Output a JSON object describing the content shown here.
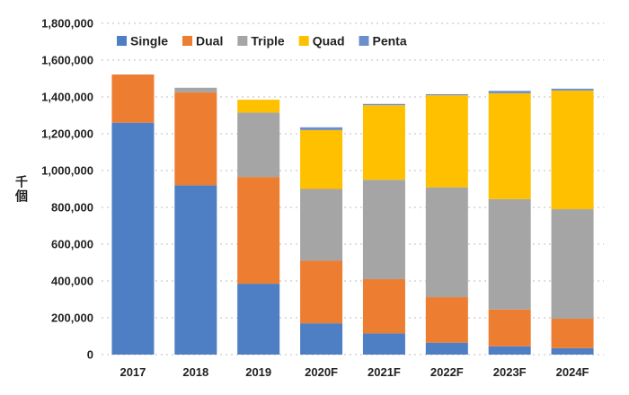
{
  "chart_data": {
    "type": "bar",
    "stacked": true,
    "categories": [
      "2017",
      "2018",
      "2019",
      "2020F",
      "2021F",
      "2022F",
      "2023F",
      "2024F"
    ],
    "series": [
      {
        "name": "Single",
        "color": "#4E7FC4",
        "values": [
          1260000,
          920000,
          385000,
          170000,
          115000,
          65000,
          45000,
          35000
        ]
      },
      {
        "name": "Dual",
        "color": "#ED7D31",
        "values": [
          262000,
          505000,
          580000,
          340000,
          295000,
          247000,
          200000,
          160000
        ]
      },
      {
        "name": "Triple",
        "color": "#A5A5A5",
        "values": [
          0,
          25000,
          350000,
          390000,
          540000,
          597000,
          600000,
          595000
        ]
      },
      {
        "name": "Quad",
        "color": "#FFC000",
        "values": [
          0,
          0,
          70000,
          320000,
          405000,
          500000,
          575000,
          645000
        ]
      },
      {
        "name": "Penta",
        "color": "#6C8FCC",
        "values": [
          0,
          0,
          0,
          15000,
          7000,
          6000,
          13000,
          10000
        ]
      }
    ],
    "y_ticks": [
      "0",
      "200,000",
      "400,000",
      "600,000",
      "800,000",
      "1,000,000",
      "1,200,000",
      "1,400,000",
      "1,600,000",
      "1,800,000"
    ],
    "ylim": [
      0,
      1800000
    ],
    "ylabel": "千個",
    "xlabel": "",
    "title": "",
    "grid": true,
    "legend_position": "top-left"
  }
}
